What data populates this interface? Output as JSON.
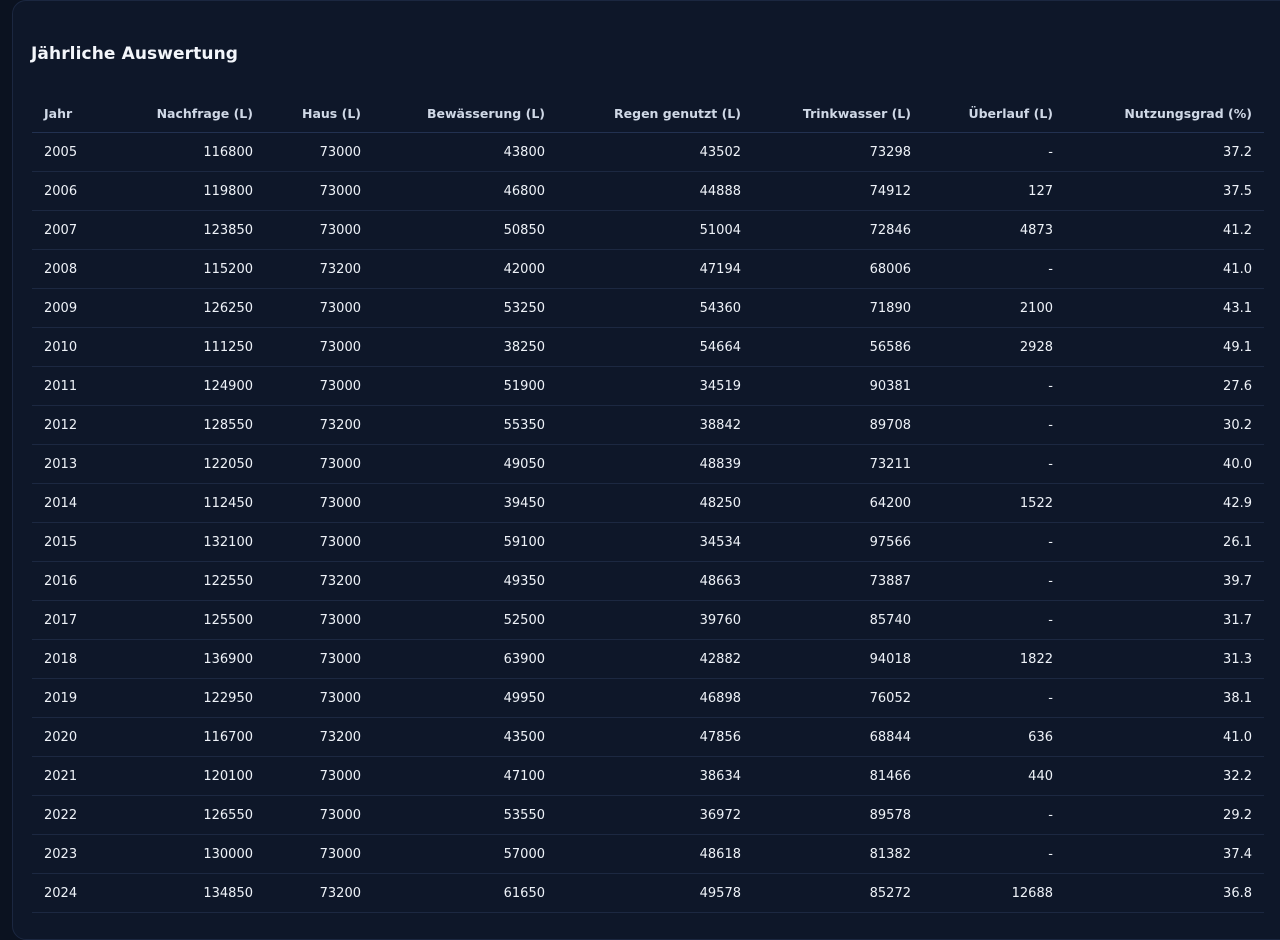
{
  "title": "Jährliche Auswertung",
  "columns": [
    "Jahr",
    "Nachfrage (L)",
    "Haus (L)",
    "Bewässerung (L)",
    "Regen genutzt (L)",
    "Trinkwasser (L)",
    "Überlauf (L)",
    "Nutzungsgrad (%)"
  ],
  "rows": [
    [
      "2005",
      "116800",
      "73000",
      "43800",
      "43502",
      "73298",
      "-",
      "37.2"
    ],
    [
      "2006",
      "119800",
      "73000",
      "46800",
      "44888",
      "74912",
      "127",
      "37.5"
    ],
    [
      "2007",
      "123850",
      "73000",
      "50850",
      "51004",
      "72846",
      "4873",
      "41.2"
    ],
    [
      "2008",
      "115200",
      "73200",
      "42000",
      "47194",
      "68006",
      "-",
      "41.0"
    ],
    [
      "2009",
      "126250",
      "73000",
      "53250",
      "54360",
      "71890",
      "2100",
      "43.1"
    ],
    [
      "2010",
      "111250",
      "73000",
      "38250",
      "54664",
      "56586",
      "2928",
      "49.1"
    ],
    [
      "2011",
      "124900",
      "73000",
      "51900",
      "34519",
      "90381",
      "-",
      "27.6"
    ],
    [
      "2012",
      "128550",
      "73200",
      "55350",
      "38842",
      "89708",
      "-",
      "30.2"
    ],
    [
      "2013",
      "122050",
      "73000",
      "49050",
      "48839",
      "73211",
      "-",
      "40.0"
    ],
    [
      "2014",
      "112450",
      "73000",
      "39450",
      "48250",
      "64200",
      "1522",
      "42.9"
    ],
    [
      "2015",
      "132100",
      "73000",
      "59100",
      "34534",
      "97566",
      "-",
      "26.1"
    ],
    [
      "2016",
      "122550",
      "73200",
      "49350",
      "48663",
      "73887",
      "-",
      "39.7"
    ],
    [
      "2017",
      "125500",
      "73000",
      "52500",
      "39760",
      "85740",
      "-",
      "31.7"
    ],
    [
      "2018",
      "136900",
      "73000",
      "63900",
      "42882",
      "94018",
      "1822",
      "31.3"
    ],
    [
      "2019",
      "122950",
      "73000",
      "49950",
      "46898",
      "76052",
      "-",
      "38.1"
    ],
    [
      "2020",
      "116700",
      "73200",
      "43500",
      "47856",
      "68844",
      "636",
      "41.0"
    ],
    [
      "2021",
      "120100",
      "73000",
      "47100",
      "38634",
      "81466",
      "440",
      "32.2"
    ],
    [
      "2022",
      "126550",
      "73000",
      "53550",
      "36972",
      "89578",
      "-",
      "29.2"
    ],
    [
      "2023",
      "130000",
      "73000",
      "57000",
      "48618",
      "81382",
      "-",
      "37.4"
    ],
    [
      "2024",
      "134850",
      "73200",
      "61650",
      "49578",
      "85272",
      "12688",
      "36.8"
    ]
  ]
}
